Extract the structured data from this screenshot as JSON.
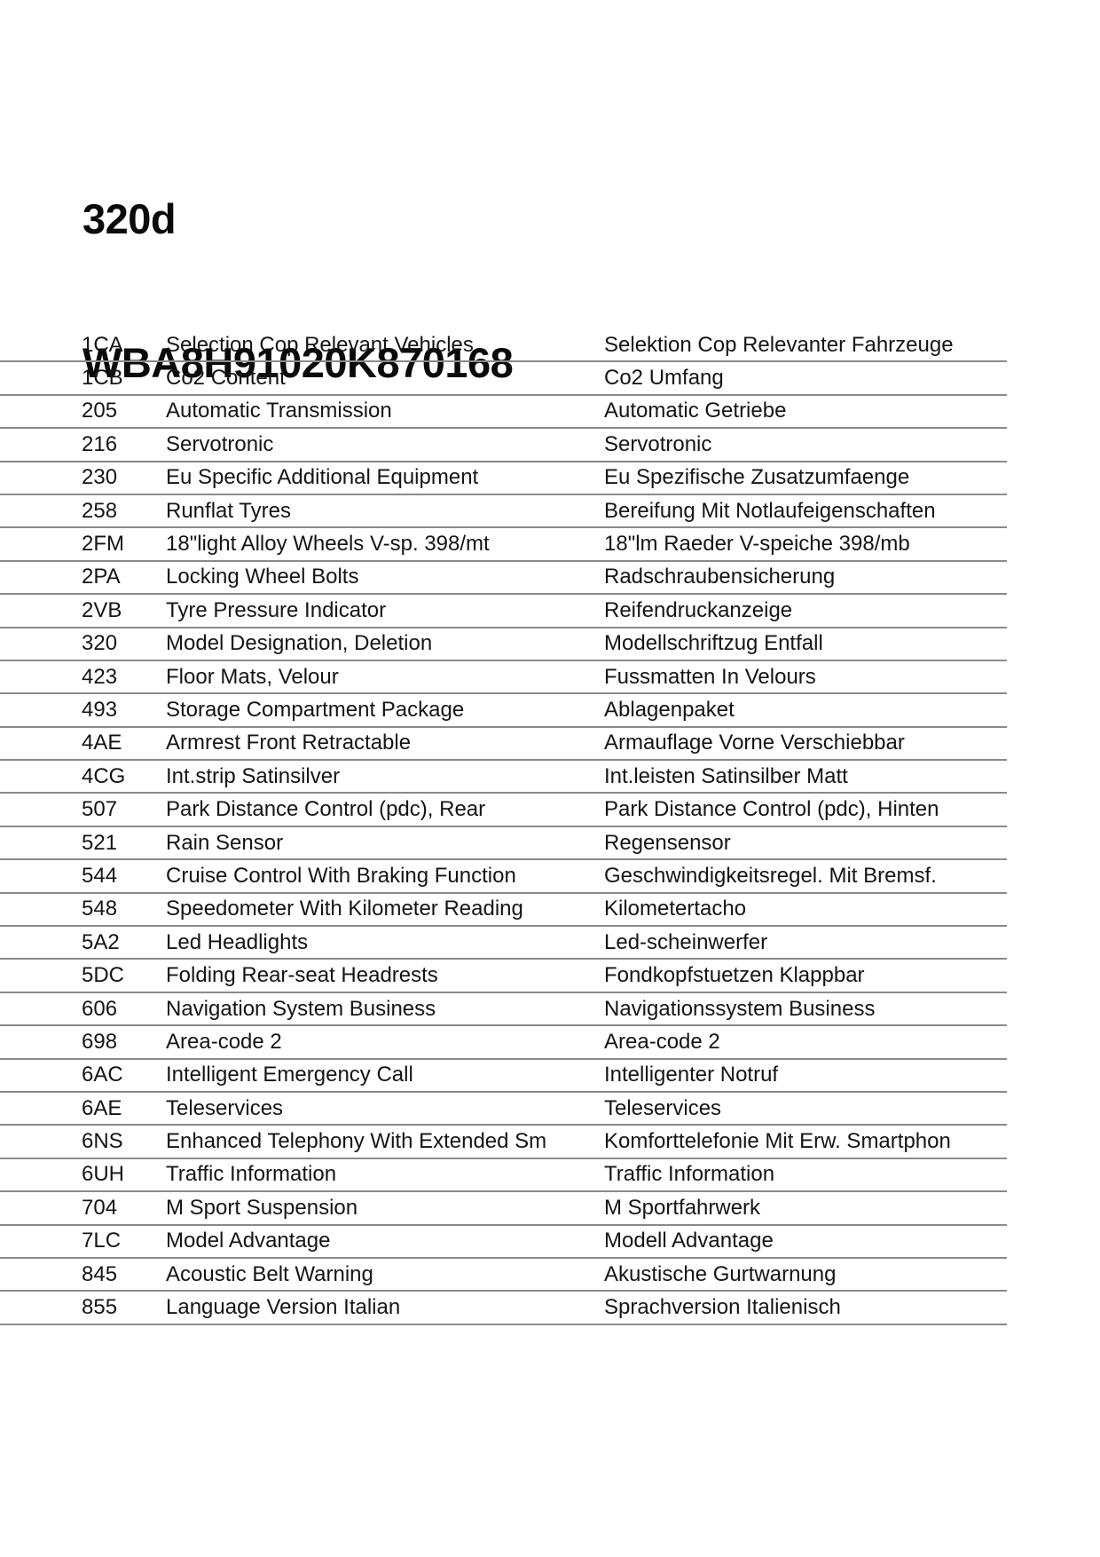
{
  "page": {
    "title_model": "320d",
    "title_vin": "WBA8H91020K870168"
  },
  "colors": {
    "background": "#ffffff",
    "text": "#151515",
    "divider": "#8a8a8a"
  },
  "table": {
    "columns": [
      "code",
      "description_en",
      "description_de"
    ],
    "rows": [
      {
        "code": "1CA",
        "en": "Selection Cop Relevant Vehicles",
        "de": "Selektion Cop Relevanter Fahrzeuge"
      },
      {
        "code": "1CB",
        "en": "Co2 Content",
        "de": "Co2 Umfang"
      },
      {
        "code": "205",
        "en": "Automatic Transmission",
        "de": "Automatic Getriebe"
      },
      {
        "code": "216",
        "en": "Servotronic",
        "de": "Servotronic"
      },
      {
        "code": "230",
        "en": "Eu Specific Additional Equipment",
        "de": "Eu Spezifische Zusatzumfaenge"
      },
      {
        "code": "258",
        "en": "Runflat Tyres",
        "de": "Bereifung Mit Notlaufeigenschaften"
      },
      {
        "code": "2FM",
        "en": "18\"light Alloy Wheels V-sp. 398/mt",
        "de": "18\"lm Raeder V-speiche 398/mb"
      },
      {
        "code": "2PA",
        "en": "Locking Wheel Bolts",
        "de": "Radschraubensicherung"
      },
      {
        "code": "2VB",
        "en": "Tyre Pressure Indicator",
        "de": "Reifendruckanzeige"
      },
      {
        "code": "320",
        "en": "Model Designation, Deletion",
        "de": "Modellschriftzug Entfall"
      },
      {
        "code": "423",
        "en": "Floor Mats, Velour",
        "de": "Fussmatten In Velours"
      },
      {
        "code": "493",
        "en": "Storage Compartment Package",
        "de": "Ablagenpaket"
      },
      {
        "code": "4AE",
        "en": "Armrest Front Retractable",
        "de": "Armauflage Vorne Verschiebbar"
      },
      {
        "code": "4CG",
        "en": "Int.strip Satinsilver",
        "de": "Int.leisten Satinsilber Matt"
      },
      {
        "code": "507",
        "en": "Park Distance Control (pdc), Rear",
        "de": "Park Distance Control (pdc), Hinten"
      },
      {
        "code": "521",
        "en": "Rain Sensor",
        "de": "Regensensor"
      },
      {
        "code": "544",
        "en": "Cruise Control With Braking Function",
        "de": "Geschwindigkeitsregel. Mit Bremsf."
      },
      {
        "code": "548",
        "en": "Speedometer With Kilometer Reading",
        "de": "Kilometertacho"
      },
      {
        "code": "5A2",
        "en": "Led Headlights",
        "de": "Led-scheinwerfer"
      },
      {
        "code": "5DC",
        "en": "Folding Rear-seat Headrests",
        "de": "Fondkopfstuetzen Klappbar"
      },
      {
        "code": "606",
        "en": "Navigation System Business",
        "de": "Navigationssystem Business"
      },
      {
        "code": "698",
        "en": "Area-code 2",
        "de": "Area-code 2"
      },
      {
        "code": "6AC",
        "en": "Intelligent Emergency Call",
        "de": "Intelligenter Notruf"
      },
      {
        "code": "6AE",
        "en": "Teleservices",
        "de": "Teleservices"
      },
      {
        "code": "6NS",
        "en": "Enhanced Telephony With Extended Sm",
        "de": "Komforttelefonie Mit Erw. Smartphon"
      },
      {
        "code": "6UH",
        "en": "Traffic Information",
        "de": "Traffic Information"
      },
      {
        "code": "704",
        "en": "M Sport Suspension",
        "de": "M Sportfahrwerk"
      },
      {
        "code": "7LC",
        "en": "Model Advantage",
        "de": "Modell Advantage"
      },
      {
        "code": "845",
        "en": "Acoustic Belt Warning",
        "de": "Akustische Gurtwarnung"
      },
      {
        "code": "855",
        "en": "Language Version Italian",
        "de": "Sprachversion Italienisch"
      }
    ]
  }
}
